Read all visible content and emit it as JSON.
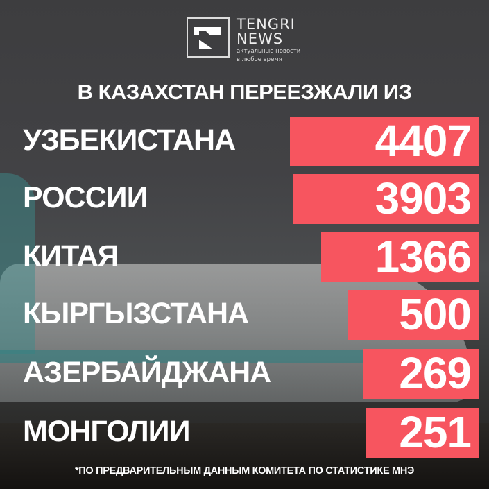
{
  "brand": {
    "name_line1": "TENGRI",
    "name_line2": "NEWS",
    "tagline_line1": "актуальные новости",
    "tagline_line2": "в любое время"
  },
  "colors": {
    "bar": "#f7555f",
    "text": "#ffffff",
    "background": "#3d3d3f"
  },
  "chart_data": {
    "type": "bar",
    "orientation": "horizontal",
    "title": "В КАЗАХСТАН ПЕРЕЕЗЖАЛИ ИЗ",
    "categories": [
      "УЗБЕКИСТАНА",
      "РОССИИ",
      "КИТАЯ",
      "КЫРГЫЗСТАНА",
      "АЗЕРБАЙДЖАНА",
      "МОНГОЛИИ"
    ],
    "values": [
      4407,
      3903,
      1366,
      500,
      269,
      251
    ],
    "note": "*ПО ПРЕДВАРИТЕЛЬНЫМ ДАННЫМ КОМИТЕТА ПО СТАТИСТИКЕ МНЭ"
  }
}
